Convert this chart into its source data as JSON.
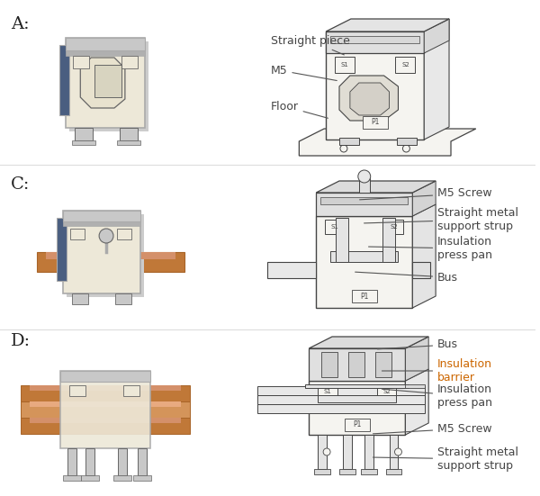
{
  "background_color": "#ffffff",
  "label_color": "#222222",
  "font_size_label": 14,
  "font_size_annot": 9,
  "annot_color_default": "#444444",
  "annot_color_orange": "#cc6600",
  "line_color": "#555555",
  "sections": [
    "A",
    "C",
    "D"
  ],
  "A_annotations": [
    {
      "text": "Straight piece",
      "color": "#444444"
    },
    {
      "text": "M5",
      "color": "#444444"
    },
    {
      "text": "Floor",
      "color": "#444444"
    }
  ],
  "C_annotations": [
    {
      "text": "M5 Screw",
      "color": "#444444"
    },
    {
      "text": "Straight metal\nsupport strup",
      "color": "#444444"
    },
    {
      "text": "Insulation\npress pan",
      "color": "#444444"
    },
    {
      "text": "Bus",
      "color": "#444444"
    }
  ],
  "D_annotations": [
    {
      "text": "Bus",
      "color": "#444444"
    },
    {
      "text": "Insulation\nbarrier",
      "color": "#cc6600"
    },
    {
      "text": "Insulation\npress pan",
      "color": "#444444"
    },
    {
      "text": "M5 Screw",
      "color": "#444444"
    },
    {
      "text": "Straight metal\nsupport strup",
      "color": "#444444"
    }
  ]
}
